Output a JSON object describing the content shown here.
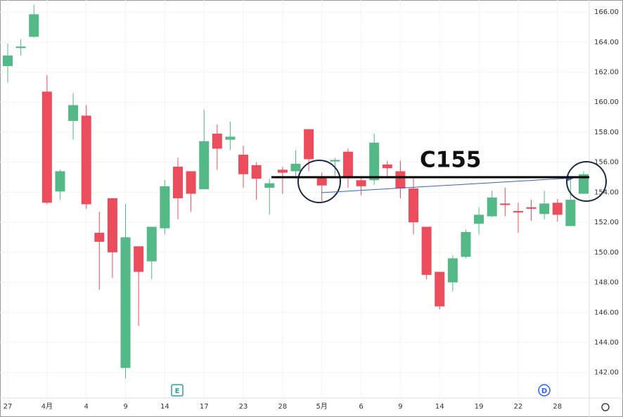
{
  "chart_data": {
    "type": "candlestick",
    "categories": [
      "27",
      null,
      null,
      "4月",
      null,
      null,
      "4",
      null,
      null,
      "9",
      null,
      null,
      "14",
      null,
      null,
      "17",
      null,
      null,
      "23",
      null,
      null,
      "28",
      null,
      null,
      "5月",
      null,
      null,
      "6",
      null,
      null,
      "9",
      null,
      null,
      "14",
      null,
      null,
      "19",
      null,
      null,
      "22",
      null,
      null,
      "28",
      null,
      null
    ],
    "open": [
      162.4,
      163.6,
      164.35,
      160.7,
      154.05,
      158.75,
      159.1,
      151.3,
      153.6,
      142.3,
      150.4,
      149.4,
      151.6,
      155.7,
      155.4,
      154.2,
      157.9,
      157.5,
      156.5,
      155.8,
      154.3,
      155.5,
      155.4,
      158.2,
      154.95,
      156.05,
      156.7,
      154.8,
      154.8,
      155.85,
      155.4,
      154.25,
      151.7,
      148.7,
      148.0,
      149.7,
      151.9,
      152.4,
      153.25,
      152.75,
      153.0,
      152.55,
      153.3,
      151.75,
      153.9
    ],
    "high": [
      163.9,
      164.2,
      166.5,
      161.8,
      155.5,
      160.6,
      159.8,
      152.7,
      153.6,
      153.2,
      150.4,
      151.7,
      154.8,
      156.3,
      155.4,
      159.5,
      158.5,
      158.7,
      157.1,
      156.0,
      154.9,
      155.7,
      156.8,
      158.2,
      155.3,
      156.3,
      156.9,
      155.0,
      157.9,
      156.1,
      156.1,
      155.0,
      151.7,
      148.7,
      149.8,
      151.5,
      153.0,
      154.1,
      154.3,
      153.3,
      153.5,
      154.1,
      153.55,
      154.85,
      155.4
    ],
    "low": [
      161.3,
      163.1,
      164.3,
      153.2,
      153.5,
      157.5,
      152.9,
      147.5,
      148.3,
      141.6,
      145.1,
      148.2,
      151.2,
      152.2,
      152.7,
      154.2,
      155.5,
      156.8,
      154.3,
      153.5,
      152.5,
      153.9,
      154.9,
      155.4,
      153.4,
      155.1,
      154.3,
      153.8,
      154.5,
      155.0,
      153.6,
      151.2,
      148.2,
      146.2,
      147.4,
      149.6,
      151.2,
      152.35,
      152.4,
      151.3,
      152.1,
      152.2,
      152.05,
      151.75,
      153.9
    ],
    "close": [
      163.1,
      163.7,
      165.85,
      153.3,
      155.4,
      159.8,
      153.2,
      150.7,
      150.0,
      151.0,
      148.7,
      151.7,
      154.4,
      153.6,
      153.9,
      157.4,
      156.9,
      157.7,
      155.2,
      154.9,
      154.6,
      155.3,
      155.9,
      156.2,
      154.45,
      156.15,
      155.0,
      154.4,
      157.3,
      155.6,
      154.25,
      152.0,
      148.5,
      146.4,
      149.6,
      151.35,
      152.5,
      153.65,
      153.15,
      152.65,
      152.9,
      153.25,
      152.5,
      153.5,
      155.2
    ],
    "up_color": "#53b987",
    "down_color": "#eb4d5c",
    "ylim": [
      140.3,
      166.8
    ],
    "yticks": [
      {
        "value": 142,
        "label": "142.00"
      },
      {
        "value": 144,
        "label": "144.00"
      },
      {
        "value": 146,
        "label": "146.00"
      },
      {
        "value": 148,
        "label": "148.00"
      },
      {
        "value": 150,
        "label": "150.00"
      },
      {
        "value": 152,
        "label": "152.00"
      },
      {
        "value": 154,
        "label": "154.00"
      },
      {
        "value": 156,
        "label": "156.00"
      },
      {
        "value": 158,
        "label": "158.00"
      },
      {
        "value": 160,
        "label": "160.00"
      },
      {
        "value": 162,
        "label": "162.00"
      },
      {
        "value": 164,
        "label": "164.00"
      },
      {
        "value": 166,
        "label": "166.00"
      }
    ],
    "grid": true,
    "events": [
      {
        "label": "E",
        "color": "#26a69a"
      },
      {
        "label": "D",
        "color": "#2962ff"
      }
    ],
    "annotation": {
      "text": "C155",
      "level": 155
    }
  }
}
